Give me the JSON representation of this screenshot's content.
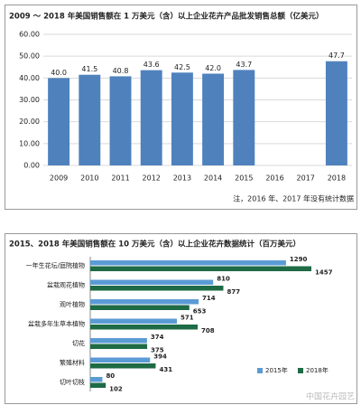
{
  "chart_data": [
    {
      "type": "bar",
      "title": "2009 ～ 2018 年美国销售额在 1 万美元（含）以上企业花卉产品批发销售总额（亿美元）",
      "categories": [
        "2009",
        "2010",
        "2011",
        "2012",
        "2013",
        "2014",
        "2015",
        "2016",
        "2017",
        "2018"
      ],
      "values": [
        40.0,
        41.5,
        40.8,
        43.6,
        42.5,
        42.0,
        43.7,
        null,
        null,
        47.7
      ],
      "value_labels": [
        "40.0",
        "41.5",
        "40.8",
        "43.6",
        "42.5",
        "42.0",
        "43.7",
        null,
        null,
        "47.7"
      ],
      "color": "#4f81bd",
      "ylim": [
        0,
        60
      ],
      "yticks": [
        {
          "value": 0,
          "label": "0.00"
        },
        {
          "value": 10,
          "label": "10.00"
        },
        {
          "value": 20,
          "label": "20.00"
        },
        {
          "value": 30,
          "label": "30.00"
        },
        {
          "value": 40,
          "label": "40.00"
        },
        {
          "value": 50,
          "label": "50.00"
        },
        {
          "value": 60,
          "label": "60.00"
        }
      ],
      "grid": true,
      "annotation": "注，2016 年、2017 年没有统计数据"
    },
    {
      "type": "hbar",
      "title": "2015、2018 年美国销售额在 10 万美元（含）以上企业花卉数据统计（百万美元）",
      "categories": [
        "一年生花坛/庭院植物",
        "盆栽观花植物",
        "观叶植物",
        "盆栽多年生草本植物",
        "切花",
        "繁殖材料",
        "切叶切枝"
      ],
      "series": [
        {
          "name": "2015年",
          "color": "#5b9bd5",
          "values": [
            1290,
            810,
            714,
            571,
            374,
            394,
            80
          ]
        },
        {
          "name": "2018年",
          "color": "#1e6b45",
          "values": [
            1457,
            877,
            653,
            708,
            375,
            431,
            102
          ]
        }
      ],
      "legend": "bottom-right",
      "watermark": "中国花卉园艺"
    }
  ]
}
